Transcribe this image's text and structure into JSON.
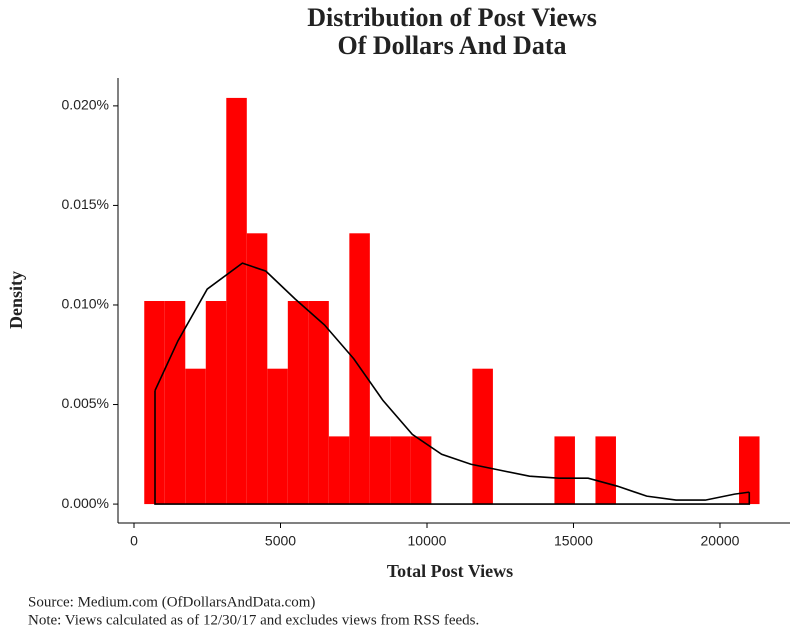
{
  "chart_data": {
    "type": "histogram",
    "title": [
      "Distribution of Post Views",
      "Of Dollars And Data"
    ],
    "x_label": "Total Post Views",
    "y_label": "Density",
    "notes": [
      "Source:  Medium.com (OfDollarsAndData.com)",
      "Note:  Views calculated as of 12/30/17 and excludes views from RSS feeds."
    ],
    "bins": [
      350,
      1050,
      1750,
      2450,
      3150,
      3850,
      4550,
      5250,
      5950,
      6650,
      7350,
      8050,
      8750,
      9450,
      10150,
      10850,
      11550,
      12250,
      12950,
      13650,
      14350,
      15050,
      15750,
      16450,
      17150,
      17850,
      18550,
      19250,
      19950,
      20650,
      21350
    ],
    "values": [
      0.0102,
      0.0102,
      0.0068,
      0.0102,
      0.0204,
      0.0136,
      0.0068,
      0.0102,
      0.0102,
      0.0034,
      0.0136,
      0.0034,
      0.0034,
      0.0034,
      0,
      0,
      0.0068,
      0,
      0,
      0,
      0.0034,
      0,
      0.0034,
      0,
      0,
      0,
      0,
      0,
      0,
      0.0034
    ],
    "color": "#ff0000",
    "density": {
      "color": "#000000",
      "x": [
        717,
        1500,
        2500,
        3700,
        4500,
        5500,
        6500,
        7500,
        8500,
        9500,
        10500,
        11500,
        12500,
        13500,
        14500,
        15500,
        16500,
        17500,
        18500,
        19500,
        20500,
        21000
      ],
      "values": [
        0.0057,
        0.0082,
        0.0108,
        0.0121,
        0.0117,
        0.0103,
        0.009,
        0.0073,
        0.0052,
        0.0035,
        0.0025,
        0.002,
        0.0017,
        0.0014,
        0.0013,
        0.0013,
        0.0009,
        0.0004,
        0.0002,
        0.0002,
        0.0005,
        0.0006
      ]
    },
    "xlim": [
      -546,
      22390
    ],
    "ylim": [
      -0.00095,
      0.0214
    ],
    "xticks": [
      0,
      5000,
      10000,
      15000,
      20000
    ],
    "yticks": [
      {
        "value": 0,
        "label": "0.000%"
      },
      {
        "value": 0.005,
        "label": "0.005%"
      },
      {
        "value": 0.01,
        "label": "0.010%"
      },
      {
        "value": 0.015,
        "label": "0.015%"
      },
      {
        "value": 0.02,
        "label": "0.020%"
      }
    ]
  }
}
